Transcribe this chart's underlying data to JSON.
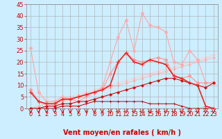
{
  "background_color": "#cceeff",
  "grid_color": "#aaaaaa",
  "xlabel": "Vent moyen/en rafales ( km/h )",
  "xlabel_color": "#cc0000",
  "xlabel_fontsize": 7,
  "tick_color": "#cc0000",
  "xlim": [
    -0.5,
    23.5
  ],
  "ylim": [
    0,
    45
  ],
  "yticks": [
    0,
    5,
    10,
    15,
    20,
    25,
    30,
    35,
    40,
    45
  ],
  "xticks": [
    0,
    1,
    2,
    3,
    4,
    5,
    6,
    7,
    8,
    9,
    10,
    11,
    12,
    13,
    14,
    15,
    16,
    17,
    18,
    19,
    20,
    21,
    22,
    23
  ],
  "lines": [
    {
      "comment": "light pink - high arc peaking ~41 at x=14",
      "x": [
        0,
        1,
        2,
        3,
        4,
        5,
        6,
        7,
        8,
        9,
        10,
        11,
        12,
        13,
        14,
        15,
        16,
        17,
        18,
        19,
        20,
        21,
        22,
        23
      ],
      "y": [
        26,
        7,
        3,
        3,
        5,
        4,
        3,
        5,
        7,
        9,
        20,
        31,
        38,
        25,
        41,
        36,
        35,
        33,
        20,
        19,
        25,
        21,
        11,
        11
      ],
      "color": "#ffaaaa",
      "marker": "D",
      "markersize": 2.5,
      "linewidth": 0.9,
      "zorder": 2
    },
    {
      "comment": "medium pink - peaks ~24 at x=12",
      "x": [
        0,
        1,
        2,
        3,
        4,
        5,
        6,
        7,
        8,
        9,
        10,
        11,
        12,
        13,
        14,
        15,
        16,
        17,
        18,
        19,
        20,
        21,
        22,
        23
      ],
      "y": [
        8,
        3,
        2,
        2,
        4,
        4,
        5,
        6,
        7,
        8,
        15,
        20,
        24,
        21,
        20,
        21,
        22,
        21,
        14,
        13,
        14,
        11,
        11,
        11
      ],
      "color": "#ff9999",
      "marker": "D",
      "markersize": 2.5,
      "linewidth": 0.9,
      "zorder": 2
    },
    {
      "comment": "dark red - sharp peak ~24 at x=12, drops ~19 x=14, peak ~20 x=15",
      "x": [
        0,
        1,
        2,
        3,
        4,
        5,
        6,
        7,
        8,
        9,
        10,
        11,
        12,
        13,
        14,
        15,
        16,
        17,
        18,
        19,
        20,
        21,
        22,
        23
      ],
      "y": [
        7,
        3,
        2,
        2,
        4,
        4,
        5,
        6,
        7,
        8,
        10,
        20,
        24,
        20,
        19,
        21,
        20,
        19,
        14,
        13,
        11,
        10,
        1,
        0
      ],
      "color": "#ee2222",
      "marker": "+",
      "markersize": 4,
      "linewidth": 1.2,
      "zorder": 4
    },
    {
      "comment": "light pink diagonal - linear rise from 0 to ~22",
      "x": [
        0,
        1,
        2,
        3,
        4,
        5,
        6,
        7,
        8,
        9,
        10,
        11,
        12,
        13,
        14,
        15,
        16,
        17,
        18,
        19,
        20,
        21,
        22,
        23
      ],
      "y": [
        0,
        1,
        2,
        3,
        4,
        5,
        6,
        7,
        8,
        9,
        10,
        11,
        12,
        13,
        14,
        15,
        16,
        17,
        18,
        19,
        20,
        21,
        22,
        23
      ],
      "color": "#ffcccc",
      "marker": "D",
      "markersize": 2,
      "linewidth": 0.8,
      "zorder": 1
    },
    {
      "comment": "second linear diagonal slightly below first",
      "x": [
        0,
        1,
        2,
        3,
        4,
        5,
        6,
        7,
        8,
        9,
        10,
        11,
        12,
        13,
        14,
        15,
        16,
        17,
        18,
        19,
        20,
        21,
        22,
        23
      ],
      "y": [
        0,
        1,
        2,
        2,
        3,
        4,
        5,
        6,
        7,
        8,
        9,
        10,
        11,
        12,
        13,
        14,
        15,
        16,
        17,
        18,
        19,
        20,
        21,
        22
      ],
      "color": "#ffbbbb",
      "marker": "D",
      "markersize": 2,
      "linewidth": 0.8,
      "zorder": 1
    },
    {
      "comment": "dark red flat near 0 then step up to ~2",
      "x": [
        0,
        1,
        2,
        3,
        4,
        5,
        6,
        7,
        8,
        9,
        10,
        11,
        12,
        13,
        14,
        15,
        16,
        17,
        18,
        19,
        20,
        21,
        22,
        23
      ],
      "y": [
        0,
        0,
        0,
        0,
        1,
        1,
        1,
        2,
        3,
        3,
        3,
        3,
        3,
        3,
        3,
        2,
        2,
        2,
        2,
        1,
        0,
        0,
        0,
        0
      ],
      "color": "#bb0000",
      "marker": "+",
      "markersize": 3,
      "linewidth": 0.7,
      "zorder": 3
    },
    {
      "comment": "dark maroon - rises slowly, peaks ~13 x=18",
      "x": [
        0,
        1,
        2,
        3,
        4,
        5,
        6,
        7,
        8,
        9,
        10,
        11,
        12,
        13,
        14,
        15,
        16,
        17,
        18,
        19,
        20,
        21,
        22,
        23
      ],
      "y": [
        0,
        0,
        1,
        1,
        2,
        2,
        3,
        3,
        4,
        5,
        6,
        7,
        8,
        9,
        10,
        11,
        12,
        13,
        13,
        12,
        11,
        10,
        9,
        11
      ],
      "color": "#cc1111",
      "marker": "D",
      "markersize": 2,
      "linewidth": 0.8,
      "zorder": 2
    }
  ]
}
